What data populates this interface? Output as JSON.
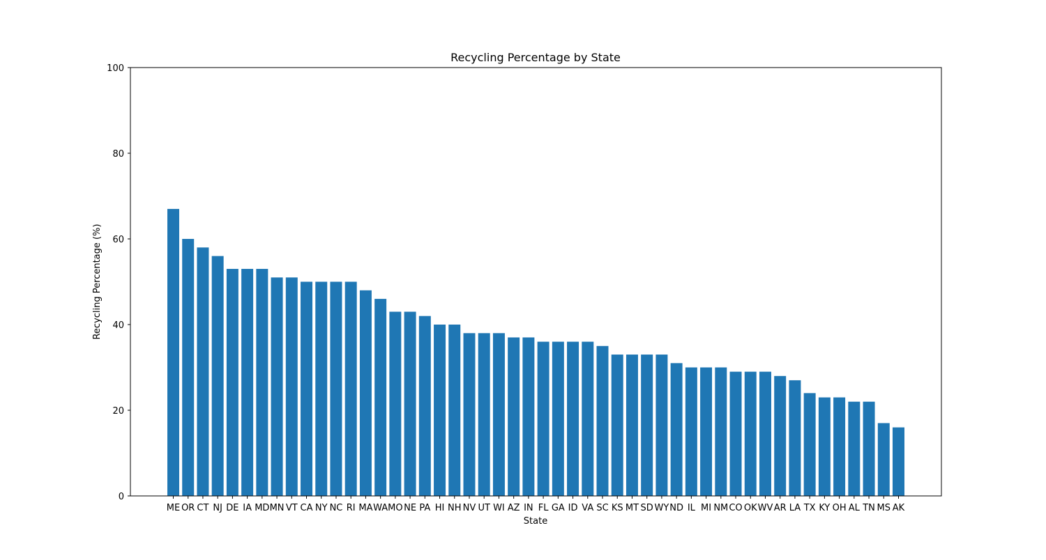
{
  "chart_data": {
    "type": "bar",
    "title": "Recycling Percentage by State",
    "xlabel": "State",
    "ylabel": "Recycling Percentage (%)",
    "ylim": [
      0,
      100
    ],
    "yticks": [
      0,
      20,
      40,
      60,
      80,
      100
    ],
    "grid": false,
    "bar_color": "#1f77b4",
    "categories": [
      "ME",
      "OR",
      "CT",
      "NJ",
      "DE",
      "IA",
      "MD",
      "MN",
      "VT",
      "CA",
      "NY",
      "NC",
      "RI",
      "MA",
      "WA",
      "MO",
      "NE",
      "PA",
      "HI",
      "NH",
      "NV",
      "UT",
      "WI",
      "AZ",
      "IN",
      "FL",
      "GA",
      "ID",
      "VA",
      "SC",
      "KS",
      "MT",
      "SD",
      "WY",
      "ND",
      "IL",
      "MI",
      "NM",
      "CO",
      "OK",
      "WV",
      "AR",
      "LA",
      "TX",
      "KY",
      "OH",
      "AL",
      "TN",
      "MS",
      "AK"
    ],
    "values": [
      67,
      60,
      58,
      56,
      53,
      53,
      53,
      51,
      51,
      50,
      50,
      50,
      50,
      48,
      46,
      43,
      43,
      42,
      40,
      40,
      38,
      38,
      38,
      37,
      37,
      36,
      36,
      36,
      36,
      35,
      33,
      33,
      33,
      33,
      31,
      30,
      30,
      30,
      29,
      29,
      29,
      28,
      27,
      24,
      23,
      23,
      22,
      22,
      17,
      16
    ]
  }
}
